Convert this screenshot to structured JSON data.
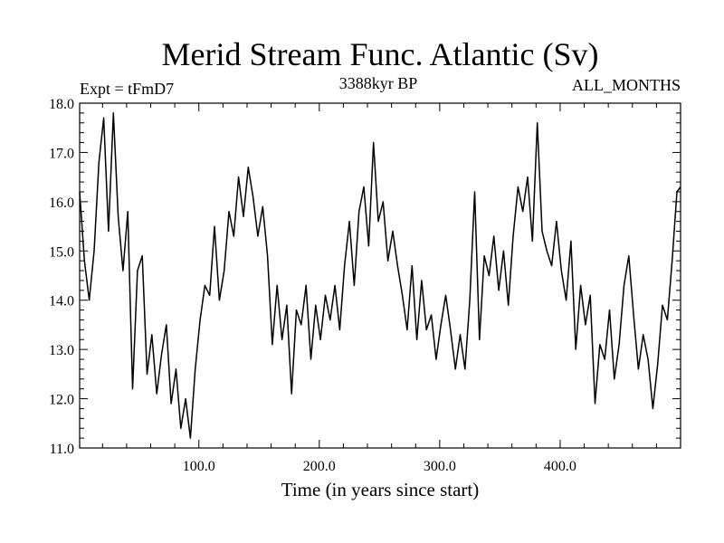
{
  "chart_data": {
    "type": "line",
    "title": "Merid Stream Func. Atlantic (Sv)",
    "subtitle_left": "Expt = tFmD7",
    "subtitle_center": "3388kyr BP",
    "subtitle_right": "ALL_MONTHS",
    "xlabel": "Time (in years since start)",
    "ylabel": "",
    "xlim": [
      1,
      500
    ],
    "ylim": [
      11.0,
      18.0
    ],
    "xticks": [
      100,
      200,
      300,
      400
    ],
    "xtick_labels": [
      "100.0",
      "200.0",
      "300.0",
      "400.0"
    ],
    "yticks": [
      11,
      12,
      13,
      14,
      15,
      16,
      17,
      18
    ],
    "ytick_labels": [
      "11.0",
      "12.0",
      "13.0",
      "14.0",
      "15.0",
      "16.0",
      "17.0",
      "18.0"
    ],
    "series": [
      {
        "name": "Merid Stream Func. Atlantic",
        "color": "#000000",
        "x": [
          1,
          5,
          9,
          13,
          17,
          21,
          25,
          29,
          33,
          37,
          41,
          45,
          49,
          53,
          57,
          61,
          65,
          69,
          73,
          77,
          81,
          85,
          89,
          93,
          97,
          101,
          105,
          109,
          113,
          117,
          121,
          125,
          129,
          133,
          137,
          141,
          145,
          149,
          153,
          157,
          161,
          165,
          169,
          173,
          177,
          181,
          185,
          189,
          193,
          197,
          201,
          205,
          209,
          213,
          217,
          221,
          225,
          229,
          233,
          237,
          241,
          245,
          249,
          253,
          257,
          261,
          265,
          269,
          273,
          277,
          281,
          285,
          289,
          293,
          297,
          301,
          305,
          309,
          313,
          317,
          321,
          325,
          329,
          333,
          337,
          341,
          345,
          349,
          353,
          357,
          361,
          365,
          369,
          373,
          377,
          381,
          385,
          389,
          393,
          397,
          401,
          405,
          409,
          413,
          417,
          421,
          425,
          429,
          433,
          437,
          441,
          445,
          449,
          453,
          457,
          461,
          465,
          469,
          473,
          477,
          481,
          485,
          489,
          493,
          497,
          500
        ],
        "values": [
          16.2,
          14.8,
          14.0,
          15.0,
          16.8,
          17.7,
          15.4,
          17.8,
          15.7,
          14.6,
          15.8,
          12.2,
          14.6,
          14.9,
          12.5,
          13.3,
          12.1,
          12.9,
          13.5,
          11.9,
          12.6,
          11.4,
          12.0,
          11.2,
          12.6,
          13.6,
          14.3,
          14.1,
          15.5,
          14.0,
          14.6,
          15.8,
          15.3,
          16.5,
          15.7,
          16.7,
          16.1,
          15.3,
          15.9,
          14.9,
          13.1,
          14.3,
          13.2,
          13.9,
          12.1,
          13.8,
          13.5,
          14.3,
          12.8,
          13.9,
          13.2,
          14.1,
          13.6,
          14.3,
          13.4,
          14.7,
          15.6,
          14.3,
          15.8,
          16.3,
          15.1,
          17.2,
          15.6,
          16.0,
          14.8,
          15.4,
          14.7,
          14.1,
          13.4,
          14.7,
          13.2,
          14.4,
          13.4,
          13.7,
          12.8,
          13.5,
          14.1,
          13.4,
          12.6,
          13.3,
          12.6,
          14.0,
          16.2,
          13.2,
          14.9,
          14.5,
          15.3,
          14.2,
          15.0,
          13.9,
          15.3,
          16.3,
          15.8,
          16.5,
          15.2,
          17.6,
          15.4,
          15.0,
          14.7,
          15.6,
          14.6,
          14.0,
          15.2,
          13.0,
          14.3,
          13.5,
          14.1,
          11.9,
          13.1,
          12.8,
          13.8,
          12.4,
          13.1,
          14.3,
          14.9,
          13.7,
          12.6,
          13.3,
          12.8,
          11.8,
          12.7,
          13.9,
          13.6,
          14.8,
          16.2,
          16.3
        ]
      }
    ]
  }
}
